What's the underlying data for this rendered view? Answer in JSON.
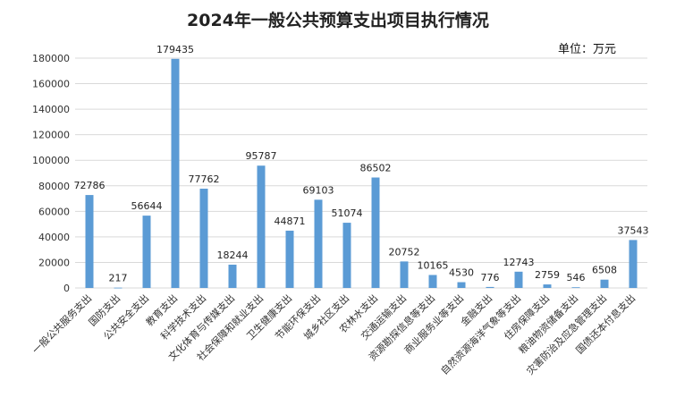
{
  "chart_data": {
    "type": "bar",
    "title": "2024年一般公共预算支出项目执行情况",
    "unit_label": "单位：万元",
    "categories": [
      "一般公共服务支出",
      "国防支出",
      "公共安全支出",
      "教育支出",
      "科学技术支出",
      "文化体育与传媒支出",
      "社会保障和就业支出",
      "卫生健康支出",
      "节能环保支出",
      "城乡社区支出",
      "农林水支出",
      "交通运输支出",
      "资源勘探信息等支出",
      "商业服务业等支出",
      "金融支出",
      "自然资源海洋气象等支出",
      "住房保障支出",
      "粮油物资储备支出",
      "灾害防治及应急管理支出",
      "国债还本付息支出"
    ],
    "values": [
      72786,
      217,
      56644,
      179435,
      77762,
      18244,
      95787,
      44871,
      69103,
      51074,
      86502,
      20752,
      10165,
      4530,
      776,
      12743,
      2759,
      546,
      6508,
      37543
    ],
    "data_labels": [
      "72786",
      "217",
      "56644",
      "179435",
      "77762",
      "18244",
      "95787",
      "44871",
      "69103",
      "51074",
      "86502",
      "20752",
      "10165",
      "4530",
      "776",
      "12743",
      "2759",
      "546",
      "6508",
      "37543"
    ],
    "y_ticks": [
      0,
      20000,
      40000,
      60000,
      80000,
      100000,
      120000,
      140000,
      160000,
      180000
    ],
    "y_tick_labels": [
      "0",
      "20000",
      "40000",
      "60000",
      "80000",
      "100000",
      "120000",
      "140000",
      "160000",
      "180000"
    ],
    "ylim": [
      0,
      180000
    ],
    "grid": true,
    "legend": "none",
    "xlabel": "",
    "ylabel": "",
    "bar_color": "#5b9bd5",
    "grid_color": "#d9d9d9"
  }
}
